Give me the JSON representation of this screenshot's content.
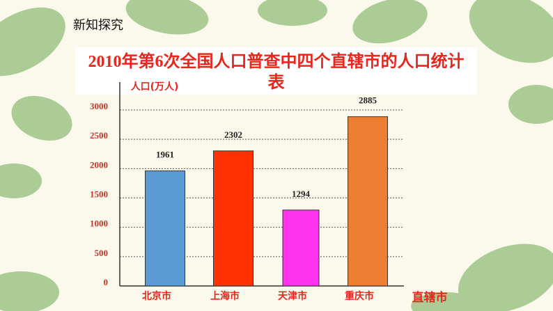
{
  "section": "新知探究",
  "chart_data": {
    "type": "bar",
    "title": "2010年第6次全国人口普查中四个直辖市的人口统计表",
    "y_label": "人口(万人)",
    "x_label": "直辖市",
    "categories": [
      "北京市",
      "上海市",
      "天津市",
      "重庆市"
    ],
    "values": [
      1961,
      2302,
      1294,
      2885
    ],
    "colors": [
      "#5b9bd5",
      "#ff3300",
      "#ff33ee",
      "#ed7d31"
    ],
    "ylim": [
      0,
      3000
    ],
    "yticks": [
      0,
      500,
      1000,
      1500,
      2000,
      2500,
      3000
    ],
    "grid": true
  }
}
